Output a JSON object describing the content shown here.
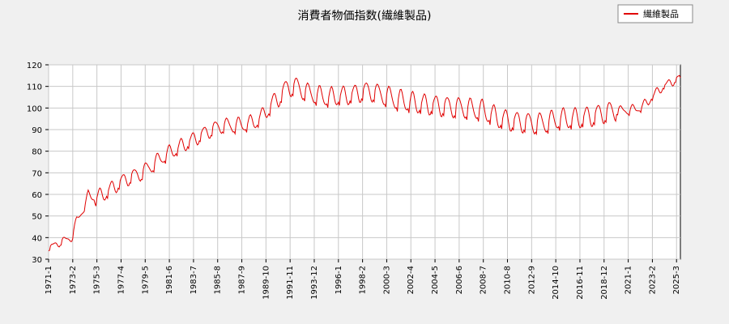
{
  "chart_data": {
    "type": "line",
    "title": "消費者物価指数(繊維製品)",
    "xlabel": "",
    "ylabel": "",
    "ylim": [
      30,
      120
    ],
    "yticks": [
      30,
      40,
      50,
      60,
      70,
      80,
      90,
      100,
      110,
      120
    ],
    "x_range": [
      "1971-1",
      "2025-7"
    ],
    "xticks": [
      "1971-1",
      "1973-2",
      "1975-3",
      "1977-4",
      "1979-5",
      "1981-6",
      "1983-7",
      "1985-8",
      "1987-9",
      "1989-10",
      "1991-11",
      "1993-12",
      "1996-1",
      "1998-2",
      "2000-3",
      "2002-4",
      "2004-5",
      "2006-6",
      "2008-7",
      "2010-8",
      "2012-9",
      "2014-10",
      "2016-11",
      "2018-12",
      "2021-1",
      "2023-2",
      "2025-3"
    ],
    "grid": true,
    "legend_position": "top-right",
    "series": [
      {
        "name": "繊維製品",
        "color": "#e00000",
        "points": [
          [
            "1971-1",
            35
          ],
          [
            "1972-1",
            38
          ],
          [
            "1973-1",
            40
          ],
          [
            "1973-6",
            48
          ],
          [
            "1974-1",
            53
          ],
          [
            "1974-6",
            60
          ],
          [
            "1975-1",
            58
          ],
          [
            "1976-1",
            61
          ],
          [
            "1977-1",
            65
          ],
          [
            "1978-1",
            68
          ],
          [
            "1979-1",
            70
          ],
          [
            "1980-1",
            74
          ],
          [
            "1981-1",
            78
          ],
          [
            "1982-1",
            81
          ],
          [
            "1983-1",
            84
          ],
          [
            "1984-1",
            87
          ],
          [
            "1985-1",
            90
          ],
          [
            "1986-1",
            92
          ],
          [
            "1987-1",
            92
          ],
          [
            "1988-1",
            92.5
          ],
          [
            "1989-1",
            94
          ],
          [
            "1990-1",
            100
          ],
          [
            "1991-1",
            106
          ],
          [
            "1991-9",
            110
          ],
          [
            "1992-6",
            110
          ],
          [
            "1993-6",
            107
          ],
          [
            "1995-1",
            105
          ],
          [
            "1997-1",
            106
          ],
          [
            "1998-6",
            108
          ],
          [
            "1999-6",
            107
          ],
          [
            "2001-1",
            104
          ],
          [
            "2003-1",
            102
          ],
          [
            "2005-1",
            101
          ],
          [
            "2007-1",
            100
          ],
          [
            "2008-6",
            99
          ],
          [
            "2010-1",
            95
          ],
          [
            "2011-1",
            94
          ],
          [
            "2012-1",
            93.5
          ],
          [
            "2013-1",
            93
          ],
          [
            "2014-1",
            93.5
          ],
          [
            "2015-1",
            95
          ],
          [
            "2016-1",
            95
          ],
          [
            "2017-1",
            95.5
          ],
          [
            "2018-1",
            96.5
          ],
          [
            "2019-1",
            98
          ],
          [
            "2020-1",
            99
          ],
          [
            "2021-1",
            99
          ],
          [
            "2022-1",
            100
          ],
          [
            "2022-10",
            103
          ],
          [
            "2023-1",
            105
          ],
          [
            "2023-6",
            107
          ],
          [
            "2024-1",
            110
          ],
          [
            "2024-6",
            111
          ],
          [
            "2025-1",
            113
          ],
          [
            "2025-7",
            114
          ]
        ]
      }
    ]
  }
}
